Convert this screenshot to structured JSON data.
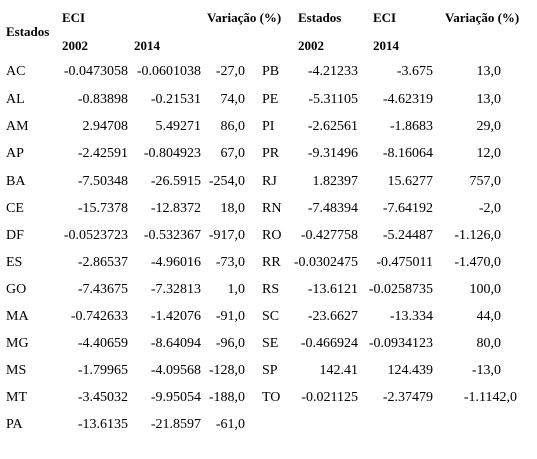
{
  "headers": {
    "estados": "Estados",
    "eci": "ECI",
    "year_2002": "2002",
    "year_2014": "2014",
    "variacao": "Variação (%)"
  },
  "rows_left": [
    {
      "estado": "AC",
      "v2002": "-0.0473058",
      "v2014": "-0.0601038",
      "var": "-27,0"
    },
    {
      "estado": "AL",
      "v2002": "-0.83898",
      "v2014": "-0.21531",
      "var": "74,0"
    },
    {
      "estado": "AM",
      "v2002": "2.94708",
      "v2014": "5.49271",
      "var": "86,0"
    },
    {
      "estado": "AP",
      "v2002": "-2.42591",
      "v2014": "-0.804923",
      "var": "67,0"
    },
    {
      "estado": "BA",
      "v2002": "-7.50348",
      "v2014": "-26.5915",
      "var": "-254,0"
    },
    {
      "estado": "CE",
      "v2002": "-15.7378",
      "v2014": "-12.8372",
      "var": "18,0"
    },
    {
      "estado": "DF",
      "v2002": "-0.0523723",
      "v2014": "-0.532367",
      "var": "-917,0"
    },
    {
      "estado": "ES",
      "v2002": "-2.86537",
      "v2014": "-4.96016",
      "var": "-73,0"
    },
    {
      "estado": "GO",
      "v2002": "-7.43675",
      "v2014": "-7.32813",
      "var": "1,0"
    },
    {
      "estado": "MA",
      "v2002": "-0.742633",
      "v2014": "-1.42076",
      "var": "-91,0"
    },
    {
      "estado": "MG",
      "v2002": "-4.40659",
      "v2014": "-8.64094",
      "var": "-96,0"
    },
    {
      "estado": "MS",
      "v2002": "-1.79965",
      "v2014": "-4.09568",
      "var": "-128,0"
    },
    {
      "estado": "MT",
      "v2002": "-3.45032",
      "v2014": "-9.95054",
      "var": "-188,0"
    },
    {
      "estado": "PA",
      "v2002": "-13.6135",
      "v2014": "-21.8597",
      "var": "-61,0"
    }
  ],
  "rows_right": [
    {
      "estado": "PB",
      "v2002": "-4.21233",
      "v2014": "-3.675",
      "var": "13,0"
    },
    {
      "estado": "PE",
      "v2002": "-5.31105",
      "v2014": "-4.62319",
      "var": "13,0"
    },
    {
      "estado": "PI",
      "v2002": "-2.62561",
      "v2014": "-1.8683",
      "var": "29,0"
    },
    {
      "estado": "PR",
      "v2002": "-9.31496",
      "v2014": "-8.16064",
      "var": "12,0"
    },
    {
      "estado": "RJ",
      "v2002": "1.82397",
      "v2014": "15.6277",
      "var": "757,0"
    },
    {
      "estado": "RN",
      "v2002": "-7.48394",
      "v2014": "-7.64192",
      "var": "-2,0"
    },
    {
      "estado": "RO",
      "v2002": "-0.427758",
      "v2014": "-5.24487",
      "var": "-1.126,0"
    },
    {
      "estado": "RR",
      "v2002": "-0.0302475",
      "v2014": "-0.475011",
      "var": "-1.470,0"
    },
    {
      "estado": "RS",
      "v2002": "-13.6121",
      "v2014": "-0.0258735",
      "var": "100,0"
    },
    {
      "estado": "SC",
      "v2002": "-23.6627",
      "v2014": "-13.334",
      "var": "44,0"
    },
    {
      "estado": "SE",
      "v2002": "-0.466924",
      "v2014": "-0.0934123",
      "var": "80,0"
    },
    {
      "estado": "SP",
      "v2002": "142.41",
      "v2014": "124.439",
      "var": "-13,0"
    },
    {
      "estado": "TO",
      "v2002": "-0.021125",
      "v2014": "-2.37479",
      "var": "-1.1142,0"
    }
  ]
}
